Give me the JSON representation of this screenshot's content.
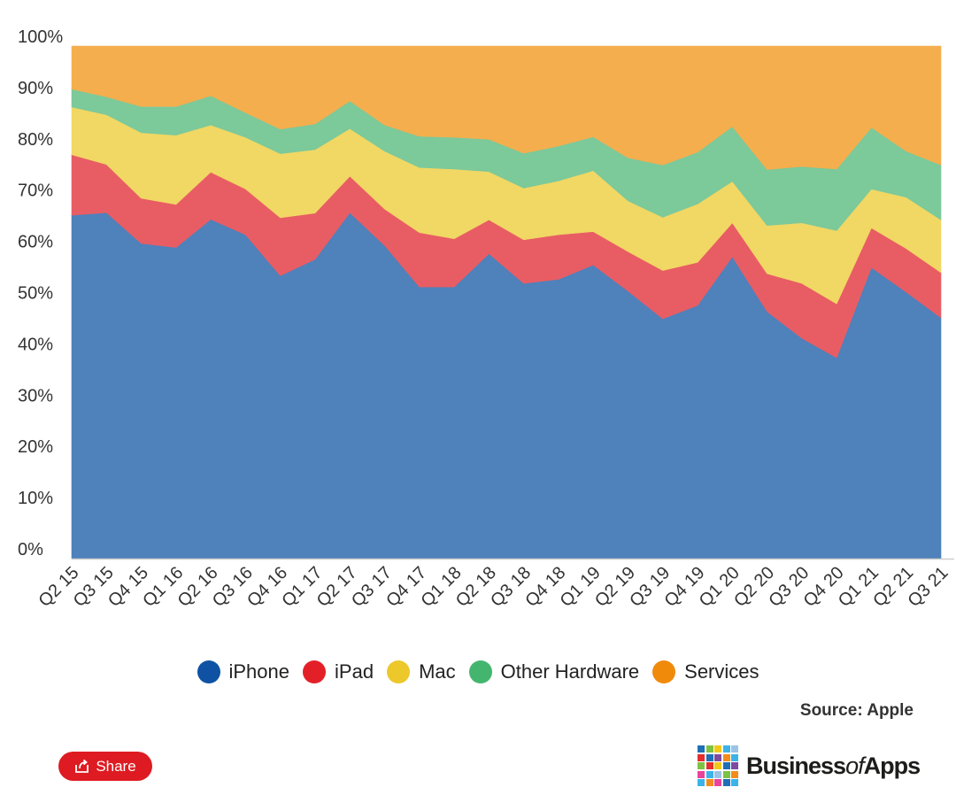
{
  "chart_data": {
    "type": "area",
    "stacked": true,
    "title": "",
    "xlabel": "",
    "ylabel": "",
    "ylim": [
      0,
      100
    ],
    "y_ticks": [
      "0%",
      "10%",
      "20%",
      "30%",
      "40%",
      "50%",
      "60%",
      "70%",
      "80%",
      "90%",
      "100%"
    ],
    "categories": [
      "Q2 15",
      "Q3 15",
      "Q4 15",
      "Q1 16",
      "Q2 16",
      "Q3 16",
      "Q4 16",
      "Q1 17",
      "Q2 17",
      "Q3 17",
      "Q4 17",
      "Q1 18",
      "Q2 18",
      "Q3 18",
      "Q4 18",
      "Q1 19",
      "Q2 19",
      "Q3 19",
      "Q4 19",
      "Q1 20",
      "Q2 20",
      "Q3 20",
      "Q4 20",
      "Q1 21",
      "Q2 21",
      "Q3 21"
    ],
    "series": [
      {
        "name": "iPhone",
        "color": "#4f81bb",
        "values": [
          67.0,
          67.5,
          61.5,
          60.7,
          66.2,
          63.2,
          55.2,
          58.4,
          67.5,
          61.1,
          53.0,
          53.0,
          59.5,
          53.7,
          54.5,
          57.3,
          52.2,
          46.8,
          49.4,
          58.9,
          48.2,
          43.0,
          39.2,
          56.8,
          52.0,
          47.0
        ]
      },
      {
        "name": "iPad",
        "color": "#e85d64",
        "values": [
          11.8,
          9.4,
          8.8,
          8.4,
          9.2,
          8.9,
          11.3,
          9.0,
          7.1,
          7.1,
          10.6,
          9.4,
          6.6,
          8.5,
          8.7,
          6.5,
          7.7,
          9.4,
          8.4,
          6.6,
          7.4,
          10.7,
          10.5,
          7.7,
          8.5,
          8.8
        ]
      },
      {
        "name": "Mac",
        "color": "#f1d764",
        "values": [
          9.3,
          9.7,
          12.8,
          13.5,
          9.2,
          10.1,
          12.5,
          12.4,
          9.3,
          11.3,
          12.7,
          13.6,
          9.4,
          10.1,
          10.5,
          11.9,
          9.9,
          10.4,
          11.4,
          8.1,
          9.4,
          11.8,
          14.3,
          7.6,
          10.0,
          10.3
        ]
      },
      {
        "name": "Other Hardware",
        "color": "#7cc99a",
        "values": [
          3.5,
          3.5,
          5.1,
          5.6,
          5.7,
          4.8,
          4.8,
          5.0,
          5.4,
          5.1,
          6.1,
          6.2,
          6.3,
          6.8,
          6.8,
          6.6,
          8.4,
          10.2,
          10.1,
          10.7,
          10.9,
          11.0,
          12.0,
          12.0,
          9.0,
          10.7
        ]
      },
      {
        "name": "Services",
        "color": "#f4ae4e",
        "values": [
          8.4,
          9.9,
          11.8,
          11.8,
          9.7,
          13.0,
          16.2,
          15.2,
          10.7,
          15.4,
          17.6,
          17.8,
          18.2,
          20.9,
          19.5,
          17.7,
          21.8,
          23.2,
          20.7,
          15.7,
          24.1,
          23.5,
          24.0,
          15.9,
          20.5,
          23.2
        ]
      }
    ],
    "legend_position": "bottom-center",
    "grid": false
  },
  "legend": [
    {
      "label": "iPhone",
      "dot_color": "#0f52a3"
    },
    {
      "label": "iPad",
      "dot_color": "#e32028"
    },
    {
      "label": "Mac",
      "dot_color": "#ecc82a"
    },
    {
      "label": "Other Hardware",
      "dot_color": "#44b56e"
    },
    {
      "label": "Services",
      "dot_color": "#f08a0b"
    }
  ],
  "source_text": "Source: Apple",
  "share_button": {
    "label": "Share",
    "icon": "share-icon",
    "color": "#de1b22"
  },
  "logo": {
    "text_main": "Business",
    "text_of": "of",
    "text_end": "Apps"
  }
}
